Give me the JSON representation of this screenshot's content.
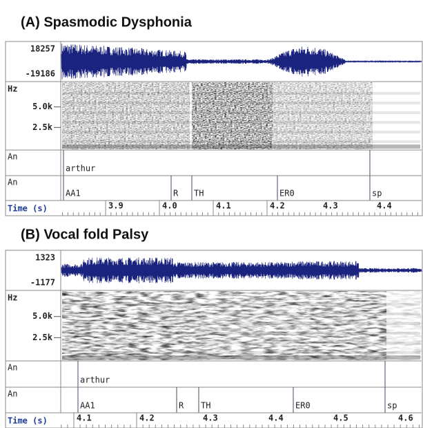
{
  "panels": [
    {
      "title": "(A) Spasmodic Dysphonia",
      "waveform": {
        "max": "18257",
        "min": "-19186"
      },
      "spectrogram": {
        "unit": "Hz",
        "labels": [
          "5.0k",
          "2.5k"
        ]
      },
      "tiers": [
        {
          "name": "An",
          "intervals": [
            "arthur"
          ]
        },
        {
          "name": "An",
          "intervals": [
            "AA1",
            "R",
            "TH",
            "ER0",
            "sp"
          ]
        }
      ],
      "time_axis": {
        "label": "Time (s)",
        "ticks": [
          "3.9",
          "4.0",
          "4.1",
          "4.2",
          "4.3",
          "4.4"
        ]
      }
    },
    {
      "title": "(B) Vocal fold Palsy",
      "waveform": {
        "max": "1323",
        "min": "-1177"
      },
      "spectrogram": {
        "unit": "Hz",
        "labels": [
          "5.0k",
          "2.5k"
        ]
      },
      "tiers": [
        {
          "name": "An",
          "intervals": [
            "arthur"
          ]
        },
        {
          "name": "An",
          "intervals": [
            "AA1",
            "R",
            "TH",
            "ER0",
            "sp"
          ]
        }
      ],
      "time_axis": {
        "label": "Time (s)",
        "ticks": [
          "4.1",
          "4.2",
          "4.3",
          "4.4",
          "4.5",
          "4.6"
        ]
      }
    }
  ]
}
